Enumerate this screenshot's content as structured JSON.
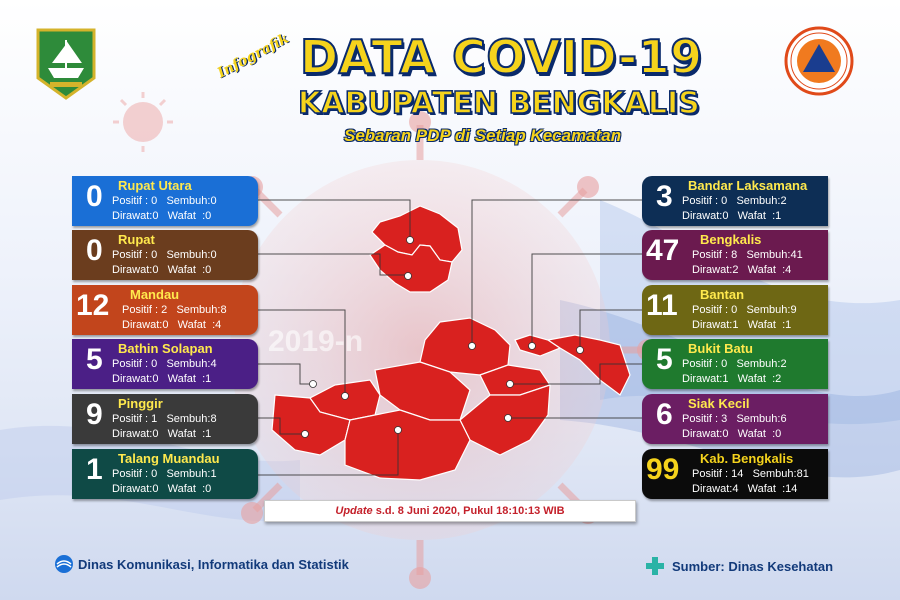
{
  "header": {
    "infografik": "Infografik",
    "title": "DATA COVID-19",
    "subtitle": "KABUPATEN BENGKALIS",
    "tagline": "Sebaran PDP di Setiap Kecamatan",
    "virus_text": "2019-n",
    "left_logo": "regency-emblem-icon",
    "right_logo": "bnpb-logo-icon"
  },
  "labels": {
    "positif": "Positif",
    "sembuh": "Sembuh",
    "dirawat": "Dirawat",
    "wafat": "Wafat"
  },
  "districts_left": [
    {
      "name": "Rupat Utara",
      "total": "0",
      "positif": "0",
      "sembuh": "0",
      "dirawat": "0",
      "wafat": "0",
      "color": "#1a6fd6"
    },
    {
      "name": "Rupat",
      "total": "0",
      "positif": "0",
      "sembuh": "0",
      "dirawat": "0",
      "wafat": "0",
      "color": "#6b3d1e"
    },
    {
      "name": "Mandau",
      "total": "12",
      "positif": "2",
      "sembuh": "8",
      "dirawat": "0",
      "wafat": "4",
      "color": "#c2451c"
    },
    {
      "name": "Bathin Solapan",
      "total": "5",
      "positif": "0",
      "sembuh": "4",
      "dirawat": "0",
      "wafat": "1",
      "color": "#4b1f86"
    },
    {
      "name": "Pinggir",
      "total": "9",
      "positif": "1",
      "sembuh": "8",
      "dirawat": "0",
      "wafat": "1",
      "color": "#3a3a3a"
    },
    {
      "name": "Talang Muandau",
      "total": "1",
      "positif": "0",
      "sembuh": "1",
      "dirawat": "0",
      "wafat": "0",
      "color": "#0f4a46"
    }
  ],
  "districts_right": [
    {
      "name": "Bandar Laksamana",
      "total": "3",
      "positif": "0",
      "sembuh": "2",
      "dirawat": "0",
      "wafat": "1",
      "color": "#0d2e55"
    },
    {
      "name": "Bengkalis",
      "total": "47",
      "positif": "8",
      "sembuh": "41",
      "dirawat": "2",
      "wafat": "4",
      "color": "#6b1a4f"
    },
    {
      "name": "Bantan",
      "total": "11",
      "positif": "0",
      "sembuh": "9",
      "dirawat": "1",
      "wafat": "1",
      "color": "#6e6714"
    },
    {
      "name": "Bukit Batu",
      "total": "5",
      "positif": "0",
      "sembuh": "2",
      "dirawat": "1",
      "wafat": "2",
      "color": "#1f7a2e"
    },
    {
      "name": "Siak Kecil",
      "total": "6",
      "positif": "3",
      "sembuh": "6",
      "dirawat": "0",
      "wafat": "0",
      "color": "#6b1e63"
    },
    {
      "name": "Kab. Bengkalis",
      "total": "99",
      "positif": "14",
      "sembuh": "81",
      "dirawat": "4",
      "wafat": "14",
      "color": "#0b0b0b",
      "num_color": "#f5d31c",
      "name_color": "#f5d31c"
    }
  ],
  "update": {
    "prefix": "Update",
    "text": " s.d. 8 Juni 2020, Pukul 18:10:13 WIB"
  },
  "footer": {
    "left": "Dinas Komunikasi, Informatika dan Statistik",
    "right": "Sumber: Dinas Kesehatan",
    "left_icon": "kominfo-logo-icon",
    "right_icon": "health-cross-icon"
  },
  "colors": {
    "map_red": "#d9211f",
    "title_yellow": "#f5d31c",
    "title_outline": "#0a2a6b"
  }
}
